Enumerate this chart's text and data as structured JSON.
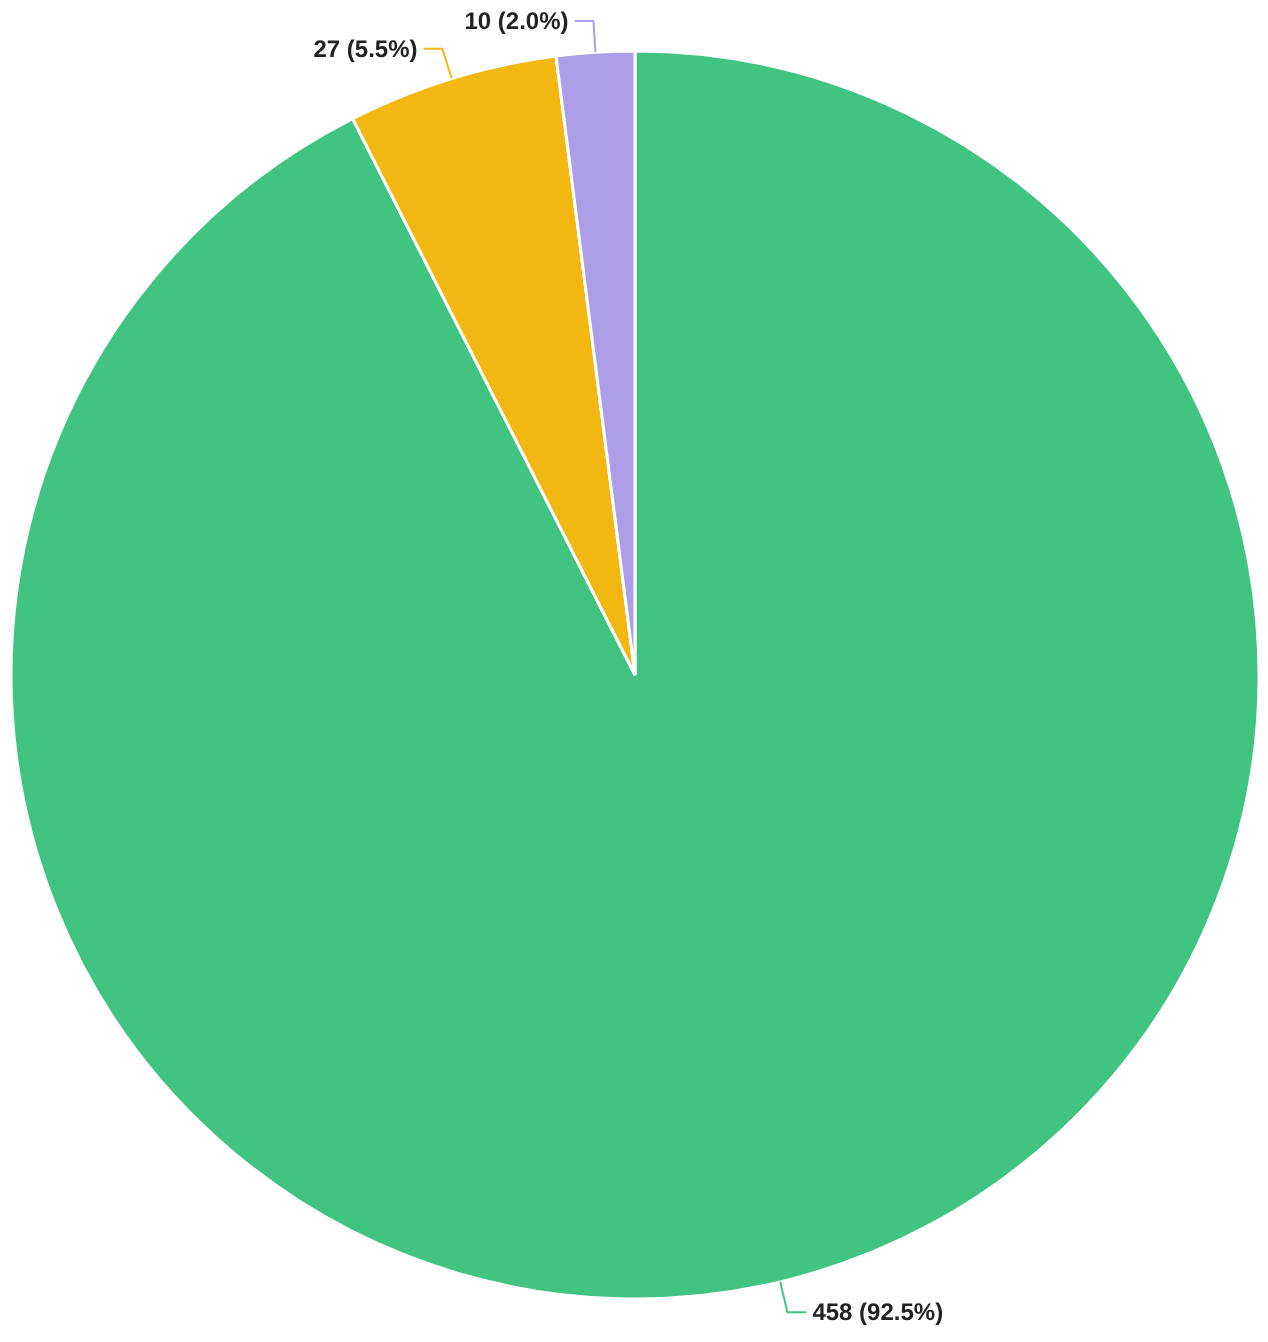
{
  "chart_data": {
    "type": "pie",
    "categories": [
      null,
      null,
      null
    ],
    "values": [
      458,
      27,
      10
    ],
    "colors": [
      "#41c482",
      "#f2b811",
      "#ab9ee6"
    ],
    "value_labels": [
      "458 (92.5%)",
      "27 (5.5%)",
      "10 (2.0%)"
    ]
  }
}
